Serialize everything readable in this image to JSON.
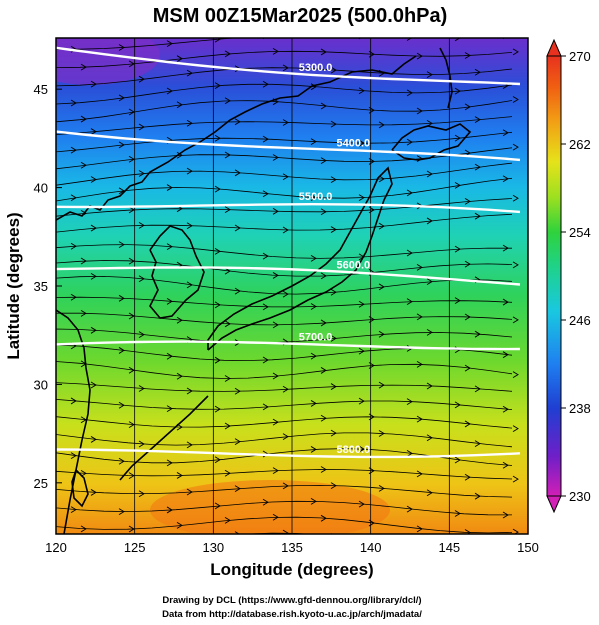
{
  "title": "MSM 00Z15Mar2025 (500.0hPa)",
  "xlabel": "Longitude (degrees)",
  "ylabel": "Latitude  (degrees)",
  "footer": {
    "line1": "Drawing by DCL (https://www.gfd-dennou.org/library/dcl/)",
    "line2": "Data from http://database.rish.kyoto-u.ac.jp/arch/jmadata/"
  },
  "map": {
    "lon_range": [
      120,
      150
    ],
    "lat_range": [
      22.4,
      47.6
    ],
    "lon_ticks": [
      "120",
      "125",
      "130",
      "135",
      "140",
      "145",
      "150"
    ],
    "lat_ticks": [
      "25",
      "30",
      "35",
      "40",
      "45"
    ],
    "field": "temperature (K), shaded",
    "contours": "geopotential height (m), white lines",
    "vectors": "wind streamlines, black arrows"
  },
  "colorbar": {
    "range": [
      230,
      270
    ],
    "ticks": [
      "230",
      "238",
      "246",
      "254",
      "262",
      "270"
    ],
    "colors": [
      "#d21fb6",
      "#6f1fc8",
      "#1f3fd2",
      "#1f7ff0",
      "#19c8e0",
      "#1fd28a",
      "#2fd23c",
      "#9ee020",
      "#e6e21a",
      "#f2a015",
      "#f05f12",
      "#e8321f"
    ]
  },
  "contours": [
    {
      "label": "5300.0",
      "lat": 47.1
    },
    {
      "label": "5400.0",
      "lat": 43.1
    },
    {
      "label": "5500.0",
      "lat": 39.3
    },
    {
      "label": "5600.0",
      "lat": 35.9
    },
    {
      "label": "5700.0",
      "lat": 31.8
    },
    {
      "label": "5800.0",
      "lat": 26.4
    }
  ]
}
